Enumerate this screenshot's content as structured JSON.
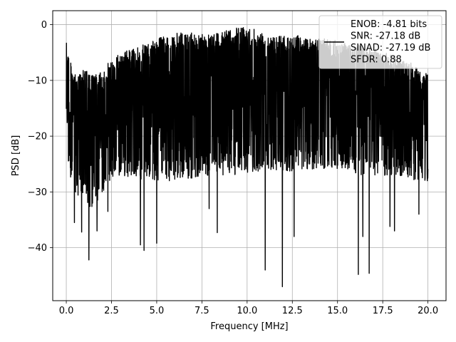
{
  "chart_data": {
    "type": "line",
    "xlabel": "Frequency [MHz]",
    "ylabel": "PSD [dB]",
    "xlim": [
      -0.75,
      21.0
    ],
    "ylim": [
      -49.5,
      2.5
    ],
    "x_ticks": [
      0.0,
      2.5,
      5.0,
      7.5,
      10.0,
      12.5,
      15.0,
      17.5,
      20.0
    ],
    "x_tick_labels": [
      "0.0",
      "2.5",
      "5.0",
      "7.5",
      "10.0",
      "12.5",
      "15.0",
      "17.5",
      "20.0"
    ],
    "y_ticks": [
      0,
      -10,
      -20,
      -30,
      -40
    ],
    "y_tick_labels": [
      "0",
      "−10",
      "−20",
      "−30",
      "−40"
    ],
    "grid": true,
    "line_color": "#000000",
    "legend": {
      "placement": "upper right",
      "entries": [
        "ENOB: -4.81 bits",
        "SNR: -27.18 dB",
        "SINAD: -27.19 dB",
        "SFDR: 0.88"
      ]
    },
    "series": [
      {
        "x_range": [
          0.0,
          20.0
        ],
        "upper_envelope": [
          [
            0.0,
            -3.5
          ],
          [
            0.5,
            -9.5
          ],
          [
            1.0,
            -8.0
          ],
          [
            1.5,
            -9.0
          ],
          [
            2.0,
            -8.5
          ],
          [
            2.5,
            -6.5
          ],
          [
            3.0,
            -5.0
          ],
          [
            4.0,
            -4.0
          ],
          [
            5.0,
            -2.5
          ],
          [
            6.0,
            -1.5
          ],
          [
            7.0,
            -1.5
          ],
          [
            8.0,
            -1.5
          ],
          [
            9.0,
            -1.0
          ],
          [
            10.0,
            0.0
          ],
          [
            11.0,
            -1.5
          ],
          [
            12.0,
            -2.0
          ],
          [
            13.0,
            -2.0
          ],
          [
            14.0,
            -2.5
          ],
          [
            15.0,
            -3.0
          ],
          [
            16.0,
            -3.5
          ],
          [
            17.0,
            -4.5
          ],
          [
            18.0,
            -5.5
          ],
          [
            19.0,
            -7.0
          ],
          [
            20.0,
            -9.0
          ]
        ],
        "lower_envelope": [
          [
            0.0,
            -25.0
          ],
          [
            0.5,
            -30.0
          ],
          [
            1.0,
            -32.0
          ],
          [
            1.5,
            -33.0
          ],
          [
            2.0,
            -30.0
          ],
          [
            2.5,
            -28.0
          ],
          [
            3.0,
            -27.0
          ],
          [
            4.0,
            -28.0
          ],
          [
            5.0,
            -28.0
          ],
          [
            6.0,
            -28.0
          ],
          [
            7.0,
            -27.5
          ],
          [
            8.0,
            -27.0
          ],
          [
            9.0,
            -27.0
          ],
          [
            10.0,
            -27.0
          ],
          [
            11.0,
            -26.5
          ],
          [
            12.0,
            -26.5
          ],
          [
            13.0,
            -26.0
          ],
          [
            14.0,
            -26.0
          ],
          [
            15.0,
            -26.0
          ],
          [
            16.0,
            -27.0
          ],
          [
            17.0,
            -27.5
          ],
          [
            18.0,
            -27.0
          ],
          [
            19.0,
            -28.0
          ],
          [
            20.0,
            -28.0
          ]
        ],
        "deep_dips": [
          [
            0.45,
            -35.5
          ],
          [
            0.85,
            -37.2
          ],
          [
            1.25,
            -42.2
          ],
          [
            1.7,
            -37.0
          ],
          [
            2.3,
            -33.5
          ],
          [
            4.1,
            -39.5
          ],
          [
            4.3,
            -40.5
          ],
          [
            5.0,
            -39.2
          ],
          [
            7.9,
            -33.0
          ],
          [
            8.35,
            -37.3
          ],
          [
            11.0,
            -44.0
          ],
          [
            11.95,
            -47.0
          ],
          [
            12.6,
            -38.0
          ],
          [
            16.15,
            -44.8
          ],
          [
            16.75,
            -44.6
          ],
          [
            16.4,
            -38.0
          ],
          [
            17.9,
            -36.2
          ],
          [
            18.15,
            -37.0
          ],
          [
            19.5,
            -34.0
          ]
        ]
      }
    ]
  }
}
